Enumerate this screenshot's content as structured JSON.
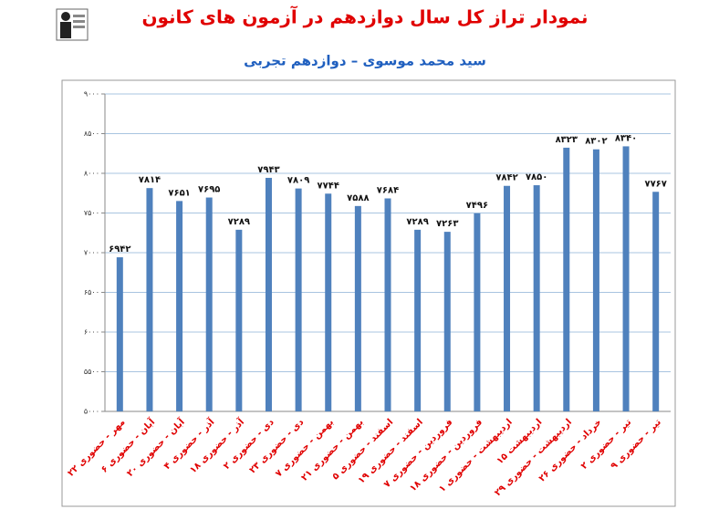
{
  "chart_data": {
    "type": "bar",
    "title": "نمودار تراز کل سال دوازدهم در آزمون های کانون",
    "subtitle": "سید محمد موسوی – دوازدهم تجربی",
    "categories": [
      "۲۲ مهر - حضوری",
      "۶ آبان - حضوری",
      "۲۰ آبان - حضوری",
      "۴ آذر - حضوری",
      "۱۸ آذر - حضوری",
      "۲ دی - حضوری",
      "۲۳ دی - حضوری",
      "۷ بهمن - حضوری",
      "۲۱ بهمن - حضوری",
      "۵ اسفند - حضوری",
      "۱۹ اسفند - حضوری",
      "۷ فروردین - حضوری",
      "۱۸ فروردین - حضوری",
      "۱ اردیبهشت - حضوری",
      "۱۵ اردیبهشت",
      "۲۹ اردیبهشت - حضوری",
      "۲۶ خرداد - حضوری",
      "۲ تیر - حضوری",
      "۹ تیر - حضوری"
    ],
    "values": [
      6942,
      7814,
      7651,
      7695,
      7289,
      7943,
      7809,
      7744,
      7588,
      7684,
      7289,
      7263,
      7496,
      7842,
      7850,
      8323,
      8302,
      8340,
      7767
    ],
    "value_labels": [
      "۶۹۴۲",
      "۷۸۱۴",
      "۷۶۵۱",
      "۷۶۹۵",
      "۷۲۸۹",
      "۷۹۴۳",
      "۷۸۰۹",
      "۷۷۴۴",
      "۷۵۸۸",
      "۷۶۸۴",
      "۷۲۸۹",
      "۷۲۶۳",
      "۷۴۹۶",
      "۷۸۴۲",
      "۷۸۵۰",
      "۸۳۲۳",
      "۸۳۰۲",
      "۸۳۴۰",
      "۷۷۶۷"
    ],
    "color": "#4f81bd",
    "ylim": [
      5000,
      9000
    ],
    "yticks": [
      {
        "value": 5000,
        "label": "۵۰۰۰"
      },
      {
        "value": 5500,
        "label": "۵۵۰۰"
      },
      {
        "value": 6000,
        "label": "۶۰۰۰"
      },
      {
        "value": 6500,
        "label": "۶۵۰۰"
      },
      {
        "value": 7000,
        "label": "۷۰۰۰"
      },
      {
        "value": 7500,
        "label": "۷۵۰۰"
      },
      {
        "value": 8000,
        "label": "۸۰۰۰"
      },
      {
        "value": 8500,
        "label": "۸۵۰۰"
      },
      {
        "value": 9000,
        "label": "۹۰۰۰"
      }
    ],
    "grid": true
  }
}
